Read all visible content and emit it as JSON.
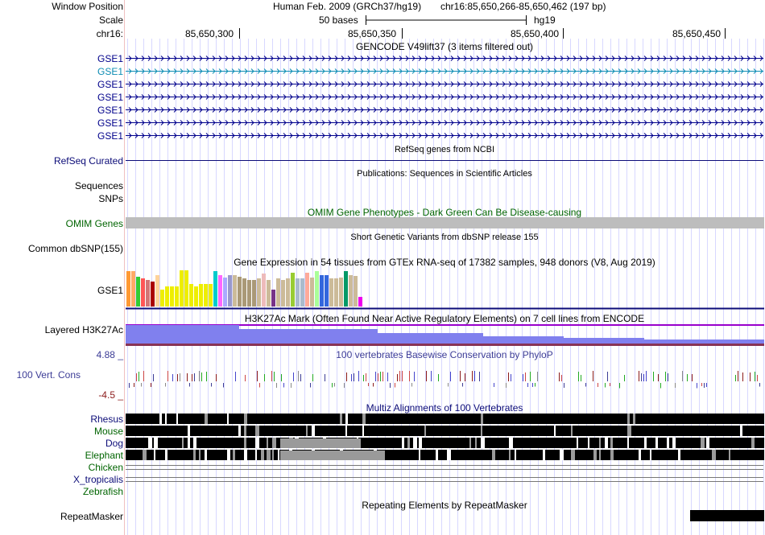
{
  "header": {
    "window_position_label": "Window Position",
    "scale_label": "Scale",
    "chrom_label": "chr16:",
    "assembly": "Human Feb. 2009 (GRCh37/hg19)",
    "position": "chr16:85,650,266-85,650,462 (197 bp)",
    "scale_bar_text": "50 bases",
    "scale_db": "hg19",
    "coord_ticks": [
      "85,650,300",
      "85,650,350",
      "85,650,400",
      "85,650,450"
    ]
  },
  "gencode": {
    "title": "GENCODE V49lift37 (3 items filtered out)",
    "items": [
      {
        "label": "GSE1",
        "color": "#00008b"
      },
      {
        "label": "GSE1",
        "color": "#0c8cb3"
      },
      {
        "label": "GSE1",
        "color": "#00008b"
      },
      {
        "label": "GSE1",
        "color": "#00008b"
      },
      {
        "label": "GSE1",
        "color": "#00008b"
      },
      {
        "label": "GSE1",
        "color": "#00008b"
      },
      {
        "label": "GSE1",
        "color": "#00008b"
      }
    ]
  },
  "refseq": {
    "title": "RefSeq genes from NCBI",
    "label": "RefSeq Curated",
    "color": "#0c0c78"
  },
  "publications": {
    "title": "Publications: Sequences in Scientific Articles",
    "label": "Sequences"
  },
  "snps": {
    "label": "SNPs"
  },
  "omim": {
    "title": "OMIM Gene Phenotypes - Dark Green Can Be Disease-causing",
    "label": "OMIM Genes",
    "color": "#006400"
  },
  "dbsnp": {
    "title": "Short Genetic Variants from dbSNP release 155",
    "label": "Common dbSNP(155)"
  },
  "gtex": {
    "title": "Gene Expression in 54 tissues from GTEx RNA-seq of 17382 samples, 948 donors (V8, Aug 2019)",
    "label": "GSE1",
    "tissues": [
      {
        "value": 0.95,
        "color": "#ff9933"
      },
      {
        "value": 0.95,
        "color": "#ffaa66"
      },
      {
        "value": 0.8,
        "color": "#33cc33"
      },
      {
        "value": 0.75,
        "color": "#ff5555"
      },
      {
        "value": 0.72,
        "color": "#d27575"
      },
      {
        "value": 0.68,
        "color": "#aa0000"
      },
      {
        "value": 0.85,
        "color": "#ffd39b"
      },
      {
        "value": 0.45,
        "color": "#eeee00"
      },
      {
        "value": 0.55,
        "color": "#eeee00"
      },
      {
        "value": 0.55,
        "color": "#eeee00"
      },
      {
        "value": 0.55,
        "color": "#eeee00"
      },
      {
        "value": 0.98,
        "color": "#eeee00"
      },
      {
        "value": 0.98,
        "color": "#eeee00"
      },
      {
        "value": 0.6,
        "color": "#eeee00"
      },
      {
        "value": 0.55,
        "color": "#eeee00"
      },
      {
        "value": 0.6,
        "color": "#eeee00"
      },
      {
        "value": 0.6,
        "color": "#eeee00"
      },
      {
        "value": 0.6,
        "color": "#eeee00"
      },
      {
        "value": 0.95,
        "color": "#00cccc"
      },
      {
        "value": 0.85,
        "color": "#ff66ff"
      },
      {
        "value": 0.78,
        "color": "#aaaaff"
      },
      {
        "value": 0.85,
        "color": "#9999cc"
      },
      {
        "value": 0.85,
        "color": "#ccbb99"
      },
      {
        "value": 0.8,
        "color": "#aa9977"
      },
      {
        "value": 0.75,
        "color": "#aa9977"
      },
      {
        "value": 0.72,
        "color": "#aa9977"
      },
      {
        "value": 0.72,
        "color": "#aa9977"
      },
      {
        "value": 0.75,
        "color": "#ccbb99"
      },
      {
        "value": 0.9,
        "color": "#eebbbb"
      },
      {
        "value": 0.72,
        "color": "#ccbb99"
      },
      {
        "value": 0.45,
        "color": "#773388"
      },
      {
        "value": 0.75,
        "color": "#ccbb99"
      },
      {
        "value": 0.72,
        "color": "#ccbb99"
      },
      {
        "value": 0.75,
        "color": "#ccbb99"
      },
      {
        "value": 0.92,
        "color": "#99cc33"
      },
      {
        "value": 0.75,
        "color": "#aabbcc"
      },
      {
        "value": 0.75,
        "color": "#aabbcc"
      },
      {
        "value": 0.92,
        "color": "#ffaa99"
      },
      {
        "value": 0.78,
        "color": "#ccbb99"
      },
      {
        "value": 0.95,
        "color": "#aaff99"
      },
      {
        "value": 0.85,
        "color": "#3366dd"
      },
      {
        "value": 0.85,
        "color": "#3366dd"
      },
      {
        "value": 0.75,
        "color": "#ccbb99"
      },
      {
        "value": 0.75,
        "color": "#ccbb99"
      },
      {
        "value": 0.78,
        "color": "#ccbb99"
      },
      {
        "value": 0.95,
        "color": "#009966"
      },
      {
        "value": 0.85,
        "color": "#ccbb99"
      },
      {
        "value": 0.82,
        "color": "#ccbb99"
      },
      {
        "value": 0.25,
        "color": "#ee00ee"
      }
    ]
  },
  "h3k27ac": {
    "title": "H3K27Ac Mark (Often Found Near Active Regulatory Elements) on 7 cell lines from ENCODE",
    "label": "Layered H3K27Ac",
    "color": "#8080ee"
  },
  "phylop": {
    "title": "100 vertebrates Basewise Conservation by PhyloP",
    "label": "100 Vert. Cons",
    "max": "4.88 _",
    "min": "-4.5 _",
    "color": "#3c3c96",
    "min_color": "#8b1a1a"
  },
  "multiz": {
    "title": "Multiz Alignments of 100 Vertebrates",
    "species": [
      {
        "name": "Rhesus",
        "color": "#0c0c78"
      },
      {
        "name": "Mouse",
        "color": "#006400"
      },
      {
        "name": "Dog",
        "color": "#0c0c78"
      },
      {
        "name": "Elephant",
        "color": "#006400"
      },
      {
        "name": "Chicken",
        "color": "#006400"
      },
      {
        "name": "X_tropicalis",
        "color": "#0c0c78"
      },
      {
        "name": "Zebrafish",
        "color": "#006400"
      }
    ]
  },
  "repeatmasker": {
    "title": "Repeating Elements by RepeatMasker",
    "label": "RepeatMasker"
  }
}
